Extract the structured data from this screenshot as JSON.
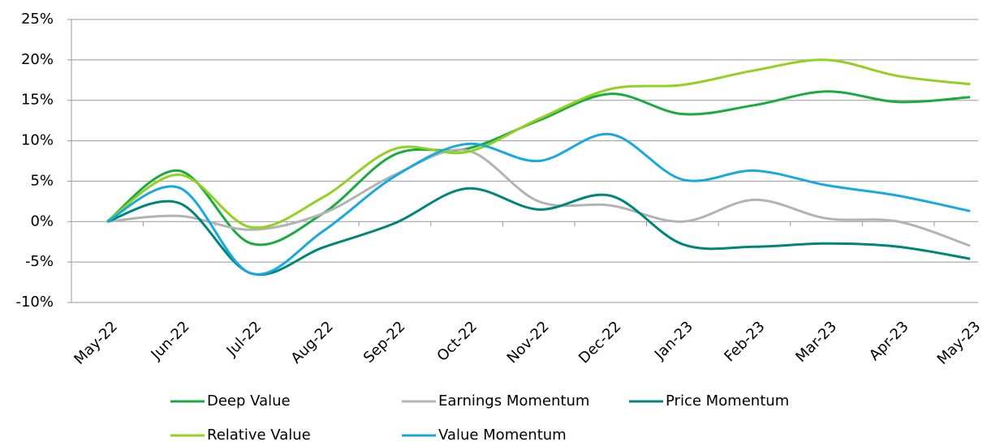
{
  "chart_data": {
    "type": "line",
    "categories": [
      "May-22",
      "Jun-22",
      "Jul-22",
      "Aug-22",
      "Sep-22",
      "Oct-22",
      "Nov-22",
      "Dec-22",
      "Jan-23",
      "Feb-23",
      "Mar-23",
      "Apr-23",
      "May-23"
    ],
    "series": [
      {
        "name": "Deep Value",
        "color": "#1aab40",
        "values": [
          0,
          6.3,
          -2.7,
          1,
          8.3,
          9,
          12.5,
          15.8,
          13.3,
          14.4,
          16.1,
          14.8,
          15.4
        ]
      },
      {
        "name": "Earnings Momentum",
        "color": "#b3b3b3",
        "values": [
          0,
          0.7,
          -1,
          1,
          5.8,
          8.8,
          2.5,
          2,
          0,
          2.7,
          0.4,
          0,
          -3
        ]
      },
      {
        "name": "Price Momentum",
        "color": "#00857a",
        "values": [
          0,
          2.3,
          -6.4,
          -3.2,
          -0.2,
          4.1,
          1.5,
          3.2,
          -2.8,
          -3.1,
          -2.7,
          -3.1,
          -4.6
        ]
      },
      {
        "name": "Relative Value",
        "color": "#92d022",
        "values": [
          0,
          5.8,
          -0.7,
          3,
          9,
          8.6,
          12.7,
          16.4,
          16.9,
          18.7,
          20,
          18,
          17
        ]
      },
      {
        "name": "Value Momentum",
        "color": "#18a9e0",
        "values": [
          0,
          4.2,
          -6.4,
          -1.2,
          5.6,
          9.6,
          7.5,
          10.8,
          5.2,
          6.3,
          4.5,
          3.2,
          1.3
        ]
      }
    ],
    "ylim": [
      -10,
      25
    ],
    "yticks": [
      {
        "value": -10,
        "label": "-10%"
      },
      {
        "value": -5,
        "label": "-5%"
      },
      {
        "value": 0,
        "label": "0%"
      },
      {
        "value": 5,
        "label": "5%"
      },
      {
        "value": 10,
        "label": "10%"
      },
      {
        "value": 15,
        "label": "15%"
      },
      {
        "value": 20,
        "label": "20%"
      },
      {
        "value": 25,
        "label": "25%"
      }
    ],
    "grid": true
  }
}
